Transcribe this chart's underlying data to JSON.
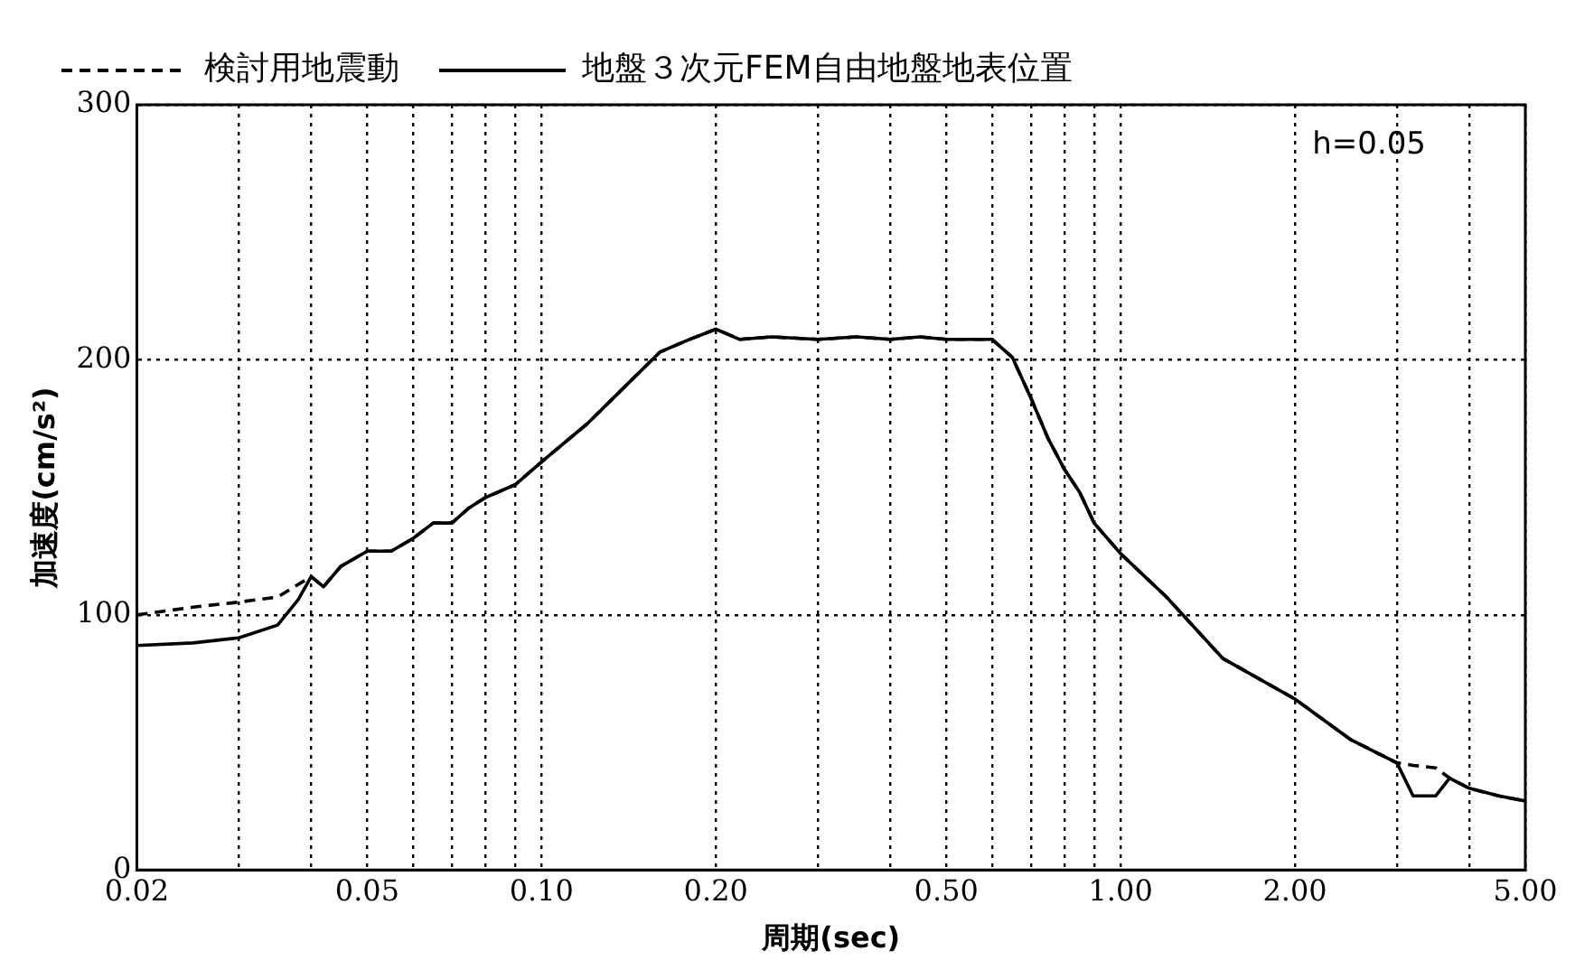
{
  "chart_data": {
    "type": "line",
    "xlabel": "周期(sec)",
    "ylabel": "加速度(cm/s²)",
    "annotations": [
      "h=0.05"
    ],
    "log": "x",
    "grid": true,
    "legend": "top",
    "marker": "none",
    "xlim": [
      0.02,
      5
    ],
    "ylim": [
      0,
      300
    ],
    "yticks": [
      0,
      100,
      200,
      300
    ],
    "xticks": [
      0.02,
      {
        "value": 0.03,
        "label": null
      },
      {
        "value": 0.04,
        "label": null
      },
      0.05,
      {
        "value": 0.06,
        "label": null
      },
      {
        "value": 0.07,
        "label": null
      },
      {
        "value": 0.08,
        "label": null
      },
      {
        "value": 0.09,
        "label": null
      },
      {
        "value": 0.1,
        "label": "0.10"
      },
      {
        "value": 0.2,
        "label": "0.20"
      },
      {
        "value": 0.3,
        "label": null
      },
      {
        "value": 0.4,
        "label": null
      },
      {
        "value": 0.5,
        "label": "0.50"
      },
      {
        "value": 0.6,
        "label": null
      },
      {
        "value": 0.7,
        "label": null
      },
      {
        "value": 0.8,
        "label": null
      },
      {
        "value": 0.9,
        "label": null
      },
      {
        "value": 1,
        "label": "1.00"
      },
      {
        "value": 2,
        "label": "2.00"
      },
      {
        "value": 3,
        "label": null
      },
      {
        "value": 4,
        "label": null
      },
      {
        "value": 5,
        "label": "5.00"
      }
    ],
    "series": [
      {
        "name": "検討用地震動",
        "color": "#000000",
        "line_style": "dashed",
        "x": [
          0.02,
          0.025,
          0.03,
          0.035,
          0.04,
          0.042,
          0.045,
          0.05,
          0.055,
          0.06,
          0.065,
          0.07,
          0.075,
          0.08,
          0.09,
          0.1,
          0.12,
          0.14,
          0.16,
          0.18,
          0.2,
          0.22,
          0.25,
          0.3,
          0.35,
          0.4,
          0.45,
          0.5,
          0.55,
          0.6,
          0.65,
          0.7,
          0.75,
          0.8,
          0.85,
          0.9,
          1,
          1.2,
          1.5,
          2,
          2.5,
          3,
          3.2,
          3.5,
          3.7,
          4,
          4.5,
          5
        ],
        "values": [
          100,
          103,
          105,
          107,
          115,
          111,
          119,
          125,
          125,
          130,
          136,
          136,
          142,
          146,
          151,
          160,
          175,
          190,
          203,
          208,
          212,
          208,
          209,
          208,
          209,
          208,
          209,
          208,
          208,
          208,
          201,
          185,
          169,
          157,
          148,
          136,
          124,
          107,
          83,
          67,
          51,
          42,
          41,
          40,
          36,
          32,
          29,
          27
        ]
      },
      {
        "name": "地盤３次元FEM自由地盤地表位置",
        "color": "#000000",
        "line_style": "solid",
        "x": [
          0.02,
          0.025,
          0.03,
          0.035,
          0.038,
          0.04,
          0.042,
          0.045,
          0.05,
          0.055,
          0.06,
          0.065,
          0.07,
          0.075,
          0.08,
          0.09,
          0.1,
          0.12,
          0.14,
          0.16,
          0.18,
          0.2,
          0.22,
          0.25,
          0.3,
          0.35,
          0.4,
          0.45,
          0.5,
          0.55,
          0.6,
          0.65,
          0.7,
          0.75,
          0.8,
          0.85,
          0.9,
          1,
          1.2,
          1.5,
          2,
          2.5,
          3,
          3.2,
          3.5,
          3.7,
          4,
          4.5,
          5
        ],
        "values": [
          88,
          89,
          91,
          96,
          106,
          115,
          111,
          119,
          125,
          125,
          130,
          136,
          136,
          142,
          146,
          151,
          160,
          175,
          190,
          203,
          208,
          212,
          208,
          209,
          208,
          209,
          208,
          209,
          208,
          208,
          208,
          201,
          185,
          169,
          157,
          148,
          136,
          124,
          107,
          83,
          67,
          51,
          42,
          29,
          29,
          36,
          32,
          29,
          27
        ]
      }
    ]
  }
}
